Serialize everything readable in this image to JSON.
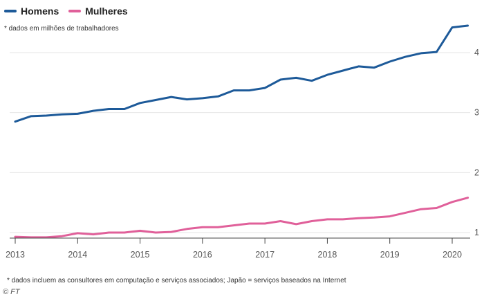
{
  "legend": [
    {
      "label": "Homens",
      "color": "#1d5a99"
    },
    {
      "label": "Mulheres",
      "color": "#e0609a"
    }
  ],
  "unit_note": "* dados em milhões de trabalhadores",
  "footnote": "* dados incluem as consultores em computação e serviços associados; Japão = serviços baseados na Internet",
  "credit": "© FT",
  "chart_data": {
    "type": "line",
    "title": "",
    "xlabel": "",
    "ylabel": "",
    "x_ticks": [
      "2013",
      "2014",
      "2015",
      "2016",
      "2017",
      "2018",
      "2019",
      "2020"
    ],
    "y_ticks": [
      "1",
      "2",
      "3",
      "4"
    ],
    "xlim": [
      2013,
      2020.3
    ],
    "ylim": [
      0.9,
      4.5
    ],
    "grid": "horizontal",
    "legend_position": "top-left",
    "series": [
      {
        "name": "Homens",
        "color": "#1d5a99",
        "x": [
          2013.0,
          2013.25,
          2013.5,
          2013.75,
          2014.0,
          2014.25,
          2014.5,
          2014.75,
          2015.0,
          2015.25,
          2015.5,
          2015.75,
          2016.0,
          2016.25,
          2016.5,
          2016.75,
          2017.0,
          2017.25,
          2017.5,
          2017.75,
          2018.0,
          2018.25,
          2018.5,
          2018.75,
          2019.0,
          2019.25,
          2019.5,
          2019.75,
          2020.0,
          2020.25
        ],
        "values": [
          2.85,
          2.94,
          2.95,
          2.97,
          2.98,
          3.03,
          3.06,
          3.06,
          3.16,
          3.21,
          3.26,
          3.22,
          3.24,
          3.27,
          3.37,
          3.37,
          3.41,
          3.55,
          3.58,
          3.53,
          3.63,
          3.7,
          3.77,
          3.75,
          3.85,
          3.93,
          3.99,
          4.01,
          4.42,
          4.45
        ]
      },
      {
        "name": "Mulheres",
        "color": "#e0609a",
        "x": [
          2013.0,
          2013.25,
          2013.5,
          2013.75,
          2014.0,
          2014.25,
          2014.5,
          2014.75,
          2015.0,
          2015.25,
          2015.5,
          2015.75,
          2016.0,
          2016.25,
          2016.5,
          2016.75,
          2017.0,
          2017.25,
          2017.5,
          2017.75,
          2018.0,
          2018.25,
          2018.5,
          2018.75,
          2019.0,
          2019.25,
          2019.5,
          2019.75,
          2020.0,
          2020.25
        ],
        "values": [
          0.93,
          0.92,
          0.92,
          0.94,
          0.99,
          0.97,
          1.0,
          1.0,
          1.03,
          1.0,
          1.01,
          1.06,
          1.09,
          1.09,
          1.12,
          1.15,
          1.15,
          1.19,
          1.14,
          1.19,
          1.22,
          1.22,
          1.24,
          1.25,
          1.27,
          1.33,
          1.39,
          1.41,
          1.51,
          1.58
        ]
      }
    ]
  }
}
